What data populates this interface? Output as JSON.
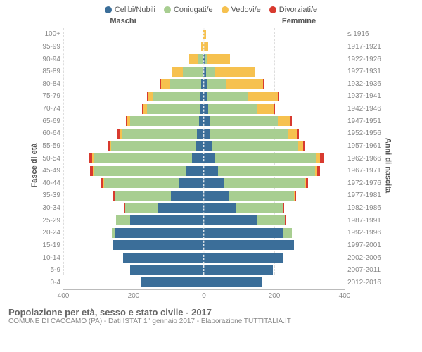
{
  "chart": {
    "type": "population-pyramid",
    "legend": [
      {
        "label": "Celibi/Nubili",
        "color": "#3b6e99"
      },
      {
        "label": "Coniugati/e",
        "color": "#a8ce91"
      },
      {
        "label": "Vedovi/e",
        "color": "#f6c14f"
      },
      {
        "label": "Divorziati/e",
        "color": "#d83a2f"
      }
    ],
    "header_left": "Maschi",
    "header_right": "Femmine",
    "y_left_title": "Fasce di età",
    "y_right_title": "Anni di nascita",
    "x_max": 400,
    "x_ticks": [
      400,
      200,
      0,
      200,
      400
    ],
    "grid_at": [
      200,
      400
    ],
    "background": "#ffffff",
    "rows": [
      {
        "age": "100+",
        "birth": "≤ 1916",
        "m": {
          "c": 0,
          "co": 0,
          "v": 5,
          "d": 0
        },
        "f": {
          "c": 0,
          "co": 0,
          "v": 5,
          "d": 0
        }
      },
      {
        "age": "95-99",
        "birth": "1917-1921",
        "m": {
          "c": 0,
          "co": 0,
          "v": 8,
          "d": 0
        },
        "f": {
          "c": 0,
          "co": 0,
          "v": 12,
          "d": 0
        }
      },
      {
        "age": "90-94",
        "birth": "1922-1926",
        "m": {
          "c": 3,
          "co": 15,
          "v": 25,
          "d": 0
        },
        "f": {
          "c": 3,
          "co": 5,
          "v": 65,
          "d": 0
        }
      },
      {
        "age": "85-89",
        "birth": "1927-1931",
        "m": {
          "c": 5,
          "co": 55,
          "v": 30,
          "d": 0
        },
        "f": {
          "c": 5,
          "co": 25,
          "v": 115,
          "d": 0
        }
      },
      {
        "age": "80-84",
        "birth": "1932-1936",
        "m": {
          "c": 8,
          "co": 90,
          "v": 25,
          "d": 3
        },
        "f": {
          "c": 8,
          "co": 55,
          "v": 105,
          "d": 3
        }
      },
      {
        "age": "75-79",
        "birth": "1937-1941",
        "m": {
          "c": 10,
          "co": 135,
          "v": 15,
          "d": 3
        },
        "f": {
          "c": 10,
          "co": 115,
          "v": 85,
          "d": 3
        }
      },
      {
        "age": "70-74",
        "birth": "1942-1946",
        "m": {
          "c": 12,
          "co": 150,
          "v": 10,
          "d": 5
        },
        "f": {
          "c": 12,
          "co": 140,
          "v": 45,
          "d": 5
        }
      },
      {
        "age": "65-69",
        "birth": "1947-1951",
        "m": {
          "c": 15,
          "co": 195,
          "v": 8,
          "d": 5
        },
        "f": {
          "c": 15,
          "co": 195,
          "v": 35,
          "d": 5
        }
      },
      {
        "age": "60-64",
        "birth": "1952-1956",
        "m": {
          "c": 20,
          "co": 215,
          "v": 5,
          "d": 6
        },
        "f": {
          "c": 18,
          "co": 220,
          "v": 25,
          "d": 6
        }
      },
      {
        "age": "55-59",
        "birth": "1957-1961",
        "m": {
          "c": 25,
          "co": 240,
          "v": 4,
          "d": 6
        },
        "f": {
          "c": 22,
          "co": 245,
          "v": 15,
          "d": 6
        }
      },
      {
        "age": "50-54",
        "birth": "1962-1966",
        "m": {
          "c": 35,
          "co": 280,
          "v": 3,
          "d": 8
        },
        "f": {
          "c": 30,
          "co": 290,
          "v": 10,
          "d": 10
        }
      },
      {
        "age": "45-49",
        "birth": "1967-1971",
        "m": {
          "c": 50,
          "co": 265,
          "v": 2,
          "d": 8
        },
        "f": {
          "c": 40,
          "co": 275,
          "v": 6,
          "d": 8
        }
      },
      {
        "age": "40-44",
        "birth": "1972-1976",
        "m": {
          "c": 70,
          "co": 215,
          "v": 2,
          "d": 7
        },
        "f": {
          "c": 55,
          "co": 230,
          "v": 4,
          "d": 7
        }
      },
      {
        "age": "35-39",
        "birth": "1977-1981",
        "m": {
          "c": 95,
          "co": 160,
          "v": 0,
          "d": 5
        },
        "f": {
          "c": 70,
          "co": 185,
          "v": 2,
          "d": 5
        }
      },
      {
        "age": "30-34",
        "birth": "1982-1986",
        "m": {
          "c": 130,
          "co": 95,
          "v": 0,
          "d": 3
        },
        "f": {
          "c": 90,
          "co": 135,
          "v": 0,
          "d": 3
        }
      },
      {
        "age": "25-29",
        "birth": "1987-1991",
        "m": {
          "c": 210,
          "co": 40,
          "v": 0,
          "d": 0
        },
        "f": {
          "c": 150,
          "co": 80,
          "v": 0,
          "d": 2
        }
      },
      {
        "age": "20-24",
        "birth": "1992-1996",
        "m": {
          "c": 255,
          "co": 8,
          "v": 0,
          "d": 0
        },
        "f": {
          "c": 225,
          "co": 25,
          "v": 0,
          "d": 0
        }
      },
      {
        "age": "15-19",
        "birth": "1997-2001",
        "m": {
          "c": 260,
          "co": 0,
          "v": 0,
          "d": 0
        },
        "f": {
          "c": 255,
          "co": 0,
          "v": 0,
          "d": 0
        }
      },
      {
        "age": "10-14",
        "birth": "2002-2006",
        "m": {
          "c": 230,
          "co": 0,
          "v": 0,
          "d": 0
        },
        "f": {
          "c": 225,
          "co": 0,
          "v": 0,
          "d": 0
        }
      },
      {
        "age": "5-9",
        "birth": "2007-2011",
        "m": {
          "c": 210,
          "co": 0,
          "v": 0,
          "d": 0
        },
        "f": {
          "c": 195,
          "co": 0,
          "v": 0,
          "d": 0
        }
      },
      {
        "age": "0-4",
        "birth": "2012-2016",
        "m": {
          "c": 180,
          "co": 0,
          "v": 0,
          "d": 0
        },
        "f": {
          "c": 165,
          "co": 0,
          "v": 0,
          "d": 0
        }
      }
    ]
  },
  "footer": {
    "title": "Popolazione per età, sesso e stato civile - 2017",
    "subtitle": "COMUNE DI CACCAMO (PA) - Dati ISTAT 1° gennaio 2017 - Elaborazione TUTTITALIA.IT"
  }
}
